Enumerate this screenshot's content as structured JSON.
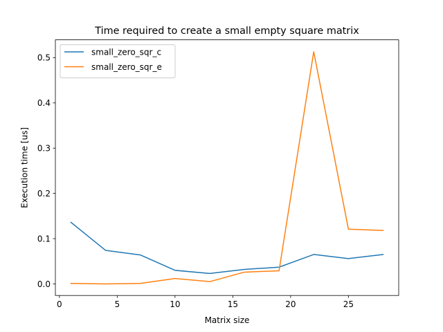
{
  "chart_data": {
    "type": "line",
    "title": "Time required to create a small empty square matrix",
    "xlabel": "Matrix size",
    "ylabel": "Execution time [us]",
    "xlim": [
      -0.35,
      29.35
    ],
    "ylim": [
      -0.0256,
      0.5394
    ],
    "xticks": [
      0,
      5,
      10,
      15,
      20,
      25
    ],
    "xtick_labels": [
      "0",
      "5",
      "10",
      "15",
      "20",
      "25"
    ],
    "yticks": [
      0.0,
      0.1,
      0.2,
      0.3,
      0.4,
      0.5
    ],
    "ytick_labels": [
      "0.0",
      "0.1",
      "0.2",
      "0.3",
      "0.4",
      "0.5"
    ],
    "grid": false,
    "legend_position": "top-left",
    "x": [
      1,
      4,
      7,
      10,
      13,
      16,
      19,
      22,
      25,
      28
    ],
    "series": [
      {
        "name": "small_zero_sqr_c",
        "color": "#1f77b4",
        "values": [
          0.136,
          0.074,
          0.064,
          0.03,
          0.023,
          0.032,
          0.037,
          0.065,
          0.056,
          0.065
        ]
      },
      {
        "name": "small_zero_sqr_e",
        "color": "#ff7f0e",
        "values": [
          0.001,
          0.0,
          0.001,
          0.012,
          0.005,
          0.026,
          0.029,
          0.513,
          0.121,
          0.118
        ]
      }
    ]
  }
}
